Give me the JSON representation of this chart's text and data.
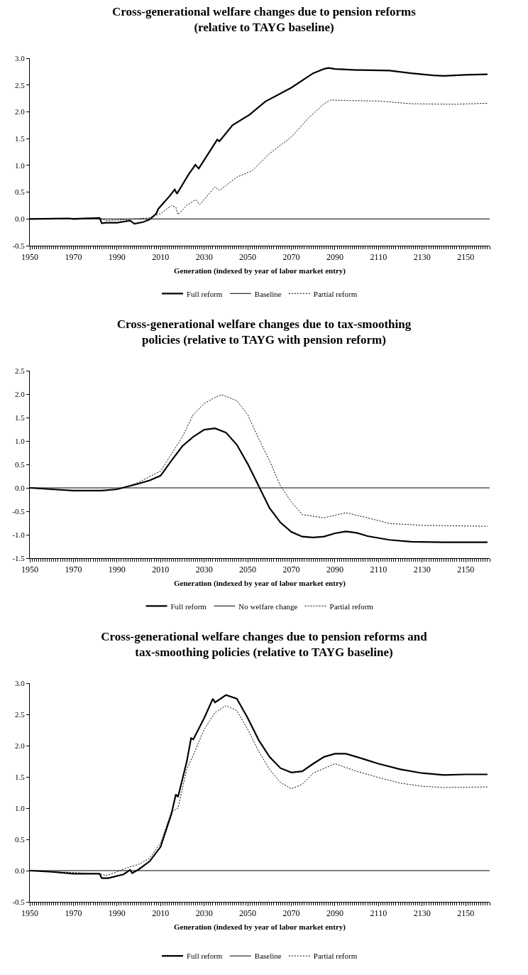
{
  "chart_data": [
    {
      "type": "line",
      "title": "Cross-generational welfare changes due to pension reforms (relative to TAYG baseline)",
      "xlabel": "Generation (indexed by year of labor market entry)",
      "xlim": [
        1950,
        2161
      ],
      "xticks": [
        1950,
        1970,
        1990,
        2010,
        2030,
        2050,
        2070,
        2090,
        2110,
        2130,
        2150
      ],
      "ylim": [
        -0.5,
        3.0
      ],
      "yticks": [
        {
          "value": -0.5,
          "label": "-0.5"
        },
        {
          "value": 0,
          "label": "0.0"
        },
        {
          "value": 0.5,
          "label": "0.5"
        },
        {
          "value": 1,
          "label": "1.0"
        },
        {
          "value": 1.5,
          "label": "1.5"
        },
        {
          "value": 2,
          "label": "2.0"
        },
        {
          "value": 2.5,
          "label": "2.5"
        },
        {
          "value": 3,
          "label": "3.0"
        }
      ],
      "grid": false,
      "legend": "bottom",
      "marker": "none",
      "series": [
        {
          "name": "Full reform",
          "color": "#000000",
          "line_style": "solid",
          "x": [
            1950,
            1968,
            1970,
            1982,
            1983,
            1985,
            1990,
            1996,
            1998,
            2002,
            2005,
            2008,
            2009,
            2014,
            2016.5,
            2017.5,
            2023,
            2026,
            2027.5,
            2036,
            2037,
            2043,
            2051,
            2058,
            2070,
            2080,
            2085,
            2087,
            2090,
            2100,
            2115,
            2125,
            2135,
            2140,
            2150,
            2160
          ],
          "values": [
            0,
            0.01,
            0,
            0.02,
            -0.08,
            -0.07,
            -0.07,
            -0.03,
            -0.09,
            -0.06,
            -0.01,
            0.1,
            0.19,
            0.42,
            0.55,
            0.47,
            0.84,
            1.01,
            0.94,
            1.48,
            1.45,
            1.75,
            1.95,
            2.19,
            2.45,
            2.72,
            2.8,
            2.82,
            2.8,
            2.78,
            2.77,
            2.72,
            2.68,
            2.67,
            2.69,
            2.7
          ]
        },
        {
          "name": "Baseline",
          "color": "#000000",
          "line_style": "solid",
          "x": [
            1950,
            2161
          ],
          "values": [
            0,
            0
          ]
        },
        {
          "name": "Partial reform",
          "color": "#000000",
          "line_style": "dotted",
          "x": [
            1950,
            1982,
            1985,
            1995,
            2005,
            2010,
            2015,
            2017,
            2018,
            2022,
            2026,
            2028,
            2035,
            2037,
            2045,
            2052,
            2060,
            2070,
            2078,
            2085,
            2088,
            2095,
            2110,
            2125,
            2145,
            2160
          ],
          "values": [
            0,
            0.02,
            -0.03,
            -0.01,
            0.02,
            0.1,
            0.25,
            0.22,
            0.08,
            0.25,
            0.36,
            0.27,
            0.6,
            0.53,
            0.78,
            0.9,
            1.22,
            1.53,
            1.89,
            2.15,
            2.22,
            2.21,
            2.2,
            2.15,
            2.14,
            2.16
          ]
        }
      ]
    },
    {
      "type": "line",
      "title": "Cross-generational welfare changes due to tax-smoothing policies (relative to TAYG with pension reform)",
      "xlabel": "Generation (indexed by year of labor market entry)",
      "xlim": [
        1950,
        2161
      ],
      "xticks": [
        1950,
        1970,
        1990,
        2010,
        2030,
        2050,
        2070,
        2090,
        2110,
        2130,
        2150
      ],
      "ylim": [
        -1.5,
        2.5
      ],
      "yticks": [
        {
          "value": -1.5,
          "label": "-1.5"
        },
        {
          "value": -1,
          "label": "-1.0"
        },
        {
          "value": -0.5,
          "label": "-0.5"
        },
        {
          "value": 0,
          "label": "0.0"
        },
        {
          "value": 0.5,
          "label": "0.5"
        },
        {
          "value": 1,
          "label": "1.0"
        },
        {
          "value": 1.5,
          "label": "1.5"
        },
        {
          "value": 2,
          "label": "2.0"
        },
        {
          "value": 2.5,
          "label": "2.5"
        }
      ],
      "grid": false,
      "legend": "bottom",
      "marker": "none",
      "series": [
        {
          "name": "Full reform",
          "color": "#000000",
          "line_style": "solid",
          "x": [
            1950,
            1960,
            1970,
            1983,
            1990,
            1995,
            2000,
            2005,
            2010,
            2015,
            2020,
            2025,
            2030,
            2035,
            2040,
            2045,
            2050,
            2055,
            2060,
            2065,
            2070,
            2075,
            2080,
            2085,
            2090,
            2095,
            2100,
            2105,
            2115,
            2125,
            2140,
            2160
          ],
          "values": [
            0,
            -0.03,
            -0.06,
            -0.06,
            -0.03,
            0.03,
            0.09,
            0.16,
            0.26,
            0.58,
            0.89,
            1.09,
            1.24,
            1.27,
            1.18,
            0.92,
            0.51,
            0.04,
            -0.43,
            -0.74,
            -0.94,
            -1.04,
            -1.06,
            -1.04,
            -0.97,
            -0.93,
            -0.96,
            -1.03,
            -1.11,
            -1.15,
            -1.16,
            -1.16
          ]
        },
        {
          "name": "No welfare change",
          "color": "#000000",
          "line_style": "solid",
          "x": [
            1950,
            2161
          ],
          "values": [
            0,
            0
          ]
        },
        {
          "name": "Partial reform",
          "color": "#000000",
          "line_style": "dotted",
          "x": [
            1950,
            1970,
            1983,
            1990,
            1995,
            2000,
            2010,
            2015,
            2020,
            2025,
            2030,
            2035,
            2038,
            2045,
            2050,
            2055,
            2060,
            2065,
            2070,
            2075,
            2085,
            2095,
            2105,
            2115,
            2130,
            2160
          ],
          "values": [
            0,
            -0.06,
            -0.06,
            -0.03,
            0.03,
            0.12,
            0.36,
            0.72,
            1.09,
            1.56,
            1.8,
            1.93,
            1.99,
            1.86,
            1.56,
            1.05,
            0.58,
            0.04,
            -0.3,
            -0.57,
            -0.64,
            -0.53,
            -0.64,
            -0.76,
            -0.8,
            -0.82
          ]
        }
      ]
    },
    {
      "type": "line",
      "title": "Cross-generational welfare changes due to pension reforms and tax-smoothing policies (relative to TAYG baseline)",
      "xlabel": "Generation (indexed by year of labor market entry)",
      "xlim": [
        1950,
        2161
      ],
      "xticks": [
        1950,
        1970,
        1990,
        2010,
        2030,
        2050,
        2070,
        2090,
        2110,
        2130,
        2150
      ],
      "ylim": [
        -0.5,
        3.0
      ],
      "yticks": [
        {
          "value": -0.5,
          "label": "-0.5"
        },
        {
          "value": 0,
          "label": "0.0"
        },
        {
          "value": 0.5,
          "label": "0.5"
        },
        {
          "value": 1,
          "label": "1.0"
        },
        {
          "value": 1.5,
          "label": "1.5"
        },
        {
          "value": 2,
          "label": "2.0"
        },
        {
          "value": 2.5,
          "label": "2.5"
        },
        {
          "value": 3,
          "label": "3.0"
        }
      ],
      "grid": false,
      "legend": "bottom",
      "marker": "none",
      "series": [
        {
          "name": "Full reform",
          "color": "#000000",
          "line_style": "solid",
          "x": [
            1950,
            1960,
            1970,
            1982,
            1983,
            1986,
            1993,
            1996,
            1997,
            2000,
            2005,
            2010,
            2015,
            2017,
            2018,
            2022,
            2024,
            2025,
            2030,
            2034,
            2035,
            2040,
            2045,
            2050,
            2055,
            2060,
            2065,
            2070,
            2075,
            2080,
            2085,
            2090,
            2095,
            2100,
            2110,
            2120,
            2130,
            2140,
            2150,
            2160
          ],
          "values": [
            0,
            -0.02,
            -0.05,
            -0.05,
            -0.12,
            -0.12,
            -0.06,
            0.01,
            -0.04,
            0.02,
            0.15,
            0.38,
            0.91,
            1.22,
            1.18,
            1.74,
            2.12,
            2.1,
            2.44,
            2.75,
            2.69,
            2.81,
            2.75,
            2.44,
            2.09,
            1.82,
            1.64,
            1.57,
            1.59,
            1.71,
            1.82,
            1.87,
            1.87,
            1.82,
            1.71,
            1.62,
            1.56,
            1.53,
            1.54,
            1.54
          ]
        },
        {
          "name": "Baseline",
          "color": "#000000",
          "line_style": "solid",
          "x": [
            1950,
            2161
          ],
          "values": [
            0,
            0
          ]
        },
        {
          "name": "Partial reform",
          "color": "#000000",
          "line_style": "dotted",
          "x": [
            1950,
            1982,
            1985,
            1990,
            1995,
            2000,
            2005,
            2010,
            2015,
            2018,
            2022,
            2025,
            2030,
            2035,
            2040,
            2045,
            2050,
            2055,
            2060,
            2065,
            2070,
            2075,
            2080,
            2090,
            2100,
            2110,
            2120,
            2130,
            2140,
            2160
          ],
          "values": [
            0,
            -0.05,
            -0.08,
            -0.02,
            0.05,
            0.1,
            0.2,
            0.44,
            0.94,
            1.0,
            1.62,
            1.85,
            2.26,
            2.53,
            2.64,
            2.56,
            2.26,
            1.91,
            1.62,
            1.41,
            1.31,
            1.38,
            1.56,
            1.71,
            1.59,
            1.49,
            1.4,
            1.35,
            1.33,
            1.34
          ]
        }
      ]
    }
  ]
}
